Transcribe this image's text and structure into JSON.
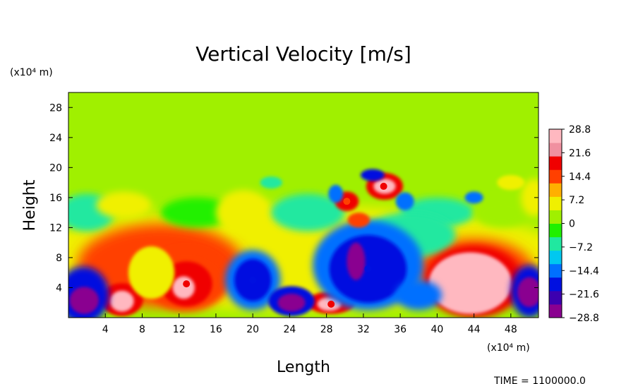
{
  "chart_data": {
    "type": "heatmap",
    "title": "Vertical Velocity [m/s]",
    "xlabel": "Length",
    "ylabel": "Height",
    "x_unit": "(x10⁴ m)",
    "y_unit": "(x10⁴ m)",
    "xlim": [
      0,
      51
    ],
    "ylim": [
      0,
      30
    ],
    "x_ticks": [
      4,
      8,
      12,
      16,
      20,
      24,
      28,
      32,
      36,
      40,
      44,
      48
    ],
    "y_ticks": [
      4,
      8,
      12,
      16,
      20,
      24,
      28
    ],
    "colorbar": {
      "range": [
        -28.8,
        28.8
      ],
      "tick_labels": [
        "28.8",
        "21.6",
        "14.4",
        "7.2",
        "0",
        "−7.2",
        "−14.4",
        "−21.6",
        "−28.8"
      ],
      "tick_values": [
        28.8,
        21.6,
        14.4,
        7.2,
        0,
        -7.2,
        -14.4,
        -21.6,
        -28.8
      ],
      "colors": [
        "#8a0090",
        "#3c00b0",
        "#0010e0",
        "#0070ff",
        "#00c8f0",
        "#20e8a0",
        "#20f000",
        "#a0f000",
        "#f0f000",
        "#ffb000",
        "#ff4000",
        "#f00000",
        "#f090a0",
        "#ffb8c0"
      ]
    },
    "features": [
      {
        "x": 43.5,
        "y": 4.5,
        "value": 28.8
      },
      {
        "x": 5.8,
        "y": 2.2,
        "value": 28.8
      },
      {
        "x": 12.8,
        "y": 4.5,
        "value": 21.6
      },
      {
        "x": 28.5,
        "y": 1.8,
        "value": 21.6
      },
      {
        "x": 34.2,
        "y": 17.5,
        "value": 21.6
      },
      {
        "x": 30.2,
        "y": 15.5,
        "value": 14.4
      },
      {
        "x": 1.7,
        "y": 2.3,
        "value": -28.8
      },
      {
        "x": 24.2,
        "y": 2.0,
        "value": -28.8
      },
      {
        "x": 50.0,
        "y": 3.4,
        "value": -28.8
      },
      {
        "x": 32.5,
        "y": 6.5,
        "value": -21.6
      },
      {
        "x": 20.0,
        "y": 5.0,
        "value": -21.6
      }
    ],
    "annotation": "TIME  =  1100000.0"
  }
}
